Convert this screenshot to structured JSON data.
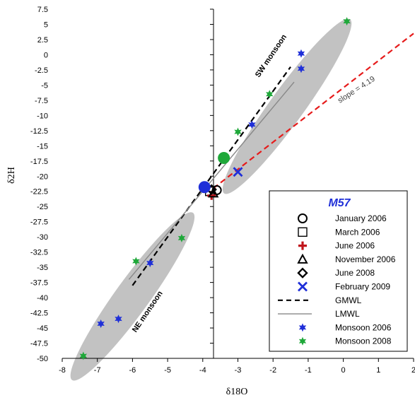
{
  "chart_data": {
    "type": "scatter",
    "xlim": [
      -8,
      2
    ],
    "ylim": [
      -50,
      7.5
    ],
    "xticks": [
      -8,
      -7,
      -6,
      -5,
      -4,
      -3,
      -2,
      -1,
      0,
      1,
      2
    ],
    "yticks": [
      7.5,
      5,
      2.5,
      0,
      -2.5,
      -5,
      -7.5,
      -10,
      -12.5,
      -15,
      -17.5,
      -20,
      -22.5,
      -25,
      -27.5,
      -30,
      -32.5,
      -35,
      -37.5,
      -40,
      -42.5,
      -45,
      -47.5,
      -50
    ],
    "xlabel": "δ18O",
    "ylabel": "δ2H",
    "grid": false,
    "legend_position": "bottom-right",
    "legend_title": "M57",
    "annotations": {
      "sw": "SW monsoon",
      "ne": "NE monsoon",
      "slope": "slope = 4.19"
    },
    "ellipses": [
      {
        "label": "SW monsoon",
        "cx": -1.6,
        "cy": -8.5,
        "rx_data": 1.45,
        "ry_data": 14.5
      },
      {
        "label": "NE monsoon",
        "cx": -6.0,
        "cy": -39.8,
        "rx_data": 1.5,
        "ry_data": 12.0
      }
    ],
    "lines": [
      {
        "name": "GMWL",
        "style": "dashed",
        "color": "#000000",
        "x": [
          -6.0,
          -1.5
        ],
        "y": [
          -38.0,
          -2.0
        ]
      },
      {
        "name": "LMWL",
        "style": "solid",
        "color": "#888888",
        "x": [
          -6.1,
          -1.4
        ],
        "y": [
          -37.0,
          -4.5
        ]
      },
      {
        "name": "",
        "style": "dashed",
        "color": "#e61b1b",
        "x": [
          -3.7,
          2.0
        ],
        "y": [
          -22.0,
          3.5
        ]
      }
    ],
    "series": [
      {
        "name": "January 2006",
        "marker": "circle",
        "color": "#000000",
        "x": [
          -3.6
        ],
        "y": [
          -22.3
        ]
      },
      {
        "name": "March 2006",
        "marker": "square",
        "color": "#000000",
        "x": [
          -3.8
        ],
        "y": [
          -22.5
        ]
      },
      {
        "name": "June 2006",
        "marker": "plus",
        "color": "#c0141b",
        "x": [
          -3.75
        ],
        "y": [
          -23.2
        ]
      },
      {
        "name": "November 2006",
        "marker": "triangle",
        "color": "#000000",
        "x": [
          -3.7
        ],
        "y": [
          -22.8
        ]
      },
      {
        "name": "June 2008",
        "marker": "diamond",
        "color": "#000000",
        "x": [
          -3.75
        ],
        "y": [
          -22.2
        ]
      },
      {
        "name": "February 2009",
        "marker": "x",
        "color": "#1f2fd8",
        "x": [
          -3.0
        ],
        "y": [
          -19.3
        ]
      },
      {
        "name": "Monsoon 2006",
        "marker": "star",
        "color": "#1f2fd8",
        "x": [
          -1.2,
          -1.2,
          -2.6,
          -5.5,
          -6.4,
          -6.9,
          -3.9
        ],
        "y": [
          0.2,
          -2.3,
          -11.5,
          -34.3,
          -43.5,
          -44.3,
          -21.8
        ]
      },
      {
        "name": "Monsoon 2008",
        "marker": "star",
        "color": "#1fa83a",
        "x": [
          0.1,
          -2.1,
          -3.0,
          -5.9,
          -4.6,
          -7.4
        ],
        "y": [
          5.5,
          -6.5,
          -12.7,
          -34.0,
          -30.2,
          -49.6
        ]
      },
      {
        "name": "",
        "marker": "bigdot",
        "color": "#1fa83a",
        "x": [
          -3.4
        ],
        "y": [
          -17.0
        ]
      },
      {
        "name": "",
        "marker": "bigdot",
        "color": "#1f2fd8",
        "x": [
          -3.95
        ],
        "y": [
          -21.8
        ]
      }
    ],
    "legend": [
      {
        "label": "January 2006",
        "marker": "circle",
        "color": "#000000"
      },
      {
        "label": "March 2006",
        "marker": "square",
        "color": "#000000"
      },
      {
        "label": "June 2006",
        "marker": "plus",
        "color": "#c0141b"
      },
      {
        "label": "November 2006",
        "marker": "triangle",
        "color": "#000000"
      },
      {
        "label": "June 2008",
        "marker": "diamond",
        "color": "#000000"
      },
      {
        "label": "February 2009",
        "marker": "x",
        "color": "#1f2fd8"
      },
      {
        "label": "GMWL",
        "marker": "dashline",
        "color": "#000000"
      },
      {
        "label": "LMWL",
        "marker": "solidline",
        "color": "#888888"
      },
      {
        "label": "Monsoon 2006",
        "marker": "star",
        "color": "#1f2fd8"
      },
      {
        "label": "Monsoon 2008",
        "marker": "star",
        "color": "#1fa83a"
      }
    ]
  }
}
